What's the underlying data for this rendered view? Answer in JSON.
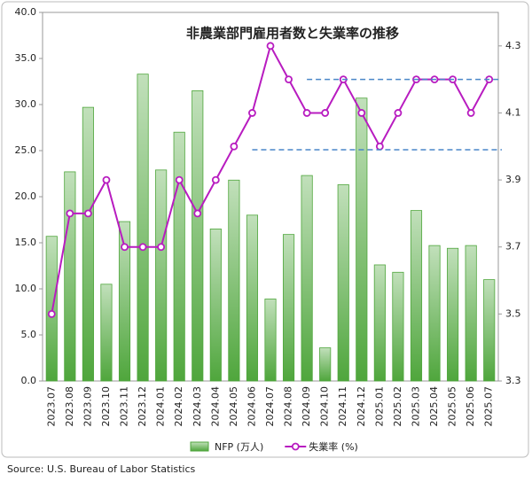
{
  "chart_data": {
    "type": "bar-line",
    "title": "非農業部門雇用者数と失業率の推移",
    "source": "Source:    U.S. Bureau of Labor Statistics",
    "categories": [
      "2023.07",
      "2023.08",
      "2023.09",
      "2023.10",
      "2023.11",
      "2023.12",
      "2024.01",
      "2024.02",
      "2024.03",
      "2024.04",
      "2024.05",
      "2024.06",
      "2024.07",
      "2024.08",
      "2024.09",
      "2024.10",
      "2024.11",
      "2024.12",
      "2025.01",
      "2025.02",
      "2025.03",
      "2025.04",
      "2025.05",
      "2025.06",
      "2025.07"
    ],
    "series": [
      {
        "name": "NFP (万人)",
        "type": "bar",
        "color": "#4fa63c",
        "values": [
          15.7,
          22.7,
          29.7,
          10.5,
          17.3,
          33.3,
          22.9,
          27.0,
          31.5,
          16.5,
          21.8,
          18.0,
          8.9,
          15.9,
          22.3,
          3.6,
          21.3,
          30.7,
          12.6,
          11.8,
          18.5,
          14.7,
          14.4,
          14.7,
          11.0
        ]
      },
      {
        "name": "失業率 (%)",
        "type": "line",
        "axis": "y2",
        "color": "#b81cc0",
        "values": [
          3.5,
          3.8,
          3.8,
          3.9,
          3.7,
          3.7,
          3.7,
          3.9,
          3.8,
          3.9,
          4.0,
          4.1,
          4.3,
          4.2,
          4.1,
          4.1,
          4.2,
          4.1,
          4.0,
          4.1,
          4.2,
          4.2,
          4.2,
          4.1,
          4.2
        ]
      }
    ],
    "ylim": [
      0,
      40
    ],
    "yticks": [
      {
        "value": 0,
        "label": "0.0"
      },
      {
        "value": 5,
        "label": "5.0"
      },
      {
        "value": 10,
        "label": "10.0"
      },
      {
        "value": 15,
        "label": "15.0"
      },
      {
        "value": 20,
        "label": "20.0"
      },
      {
        "value": 25,
        "label": "25.0"
      },
      {
        "value": 30,
        "label": "30.0"
      },
      {
        "value": 35,
        "label": "35.0"
      },
      {
        "value": 40,
        "label": "40.0"
      }
    ],
    "y2lim": [
      3.3,
      4.4
    ],
    "y2ticks": [
      3.3,
      3.5,
      3.7,
      3.9,
      4.1,
      4.3
    ],
    "reference_lines": [
      {
        "value": 4.2,
        "start": "2024.09",
        "color": "#4a86c8"
      },
      {
        "value": 3.99,
        "start": "2024.06",
        "color": "#4a86c8"
      }
    ],
    "legend": "bottom"
  }
}
